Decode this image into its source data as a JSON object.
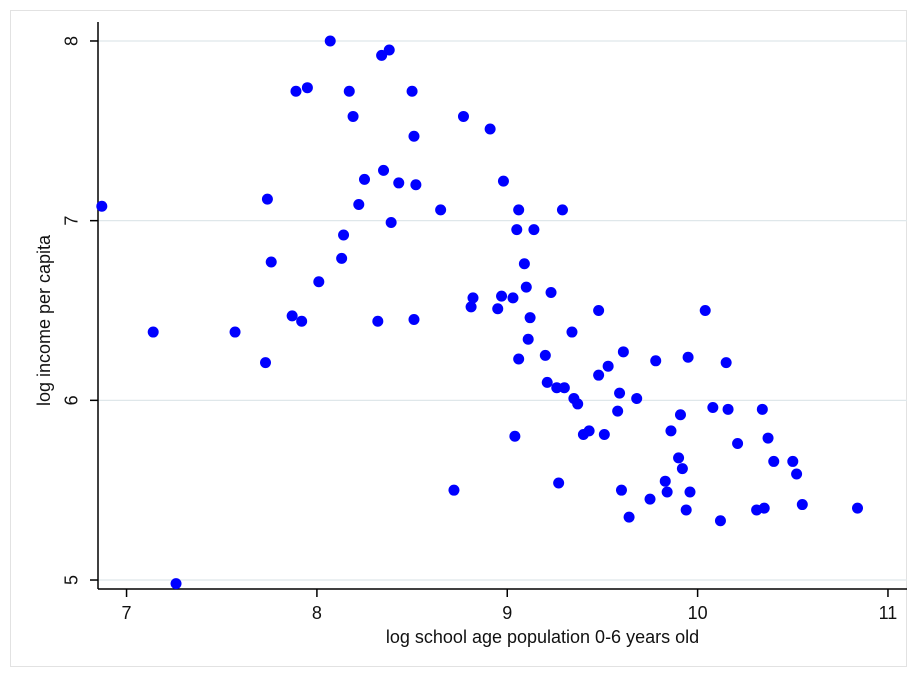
{
  "chart_data": {
    "type": "scatter",
    "title": "",
    "xlabel": "log school age population 0-6 years old",
    "ylabel": "log income per capita",
    "xlim": [
      6.85,
      11.1
    ],
    "ylim": [
      4.95,
      8.05
    ],
    "xticks": [
      7,
      8,
      9,
      10,
      11
    ],
    "yticks": [
      5,
      6,
      7,
      8
    ],
    "xtick_labels": [
      "7",
      "8",
      "9",
      "10",
      "11"
    ],
    "ytick_labels": [
      "5",
      "6",
      "7",
      "8"
    ],
    "grid": "horizontal",
    "marker_color": "#0000ff",
    "series": [
      {
        "points": [
          [
            6.87,
            7.08
          ],
          [
            7.14,
            6.38
          ],
          [
            7.26,
            4.98
          ],
          [
            7.57,
            6.38
          ],
          [
            7.73,
            6.21
          ],
          [
            7.74,
            7.12
          ],
          [
            7.76,
            6.77
          ],
          [
            7.87,
            6.47
          ],
          [
            7.89,
            7.72
          ],
          [
            7.92,
            6.44
          ],
          [
            7.95,
            7.74
          ],
          [
            8.01,
            6.66
          ],
          [
            8.07,
            8.0
          ],
          [
            8.13,
            6.79
          ],
          [
            8.14,
            6.92
          ],
          [
            8.17,
            7.72
          ],
          [
            8.19,
            7.58
          ],
          [
            8.22,
            7.09
          ],
          [
            8.25,
            7.23
          ],
          [
            8.32,
            6.44
          ],
          [
            8.34,
            7.92
          ],
          [
            8.35,
            7.28
          ],
          [
            8.38,
            7.95
          ],
          [
            8.39,
            6.99
          ],
          [
            8.43,
            7.21
          ],
          [
            8.5,
            7.72
          ],
          [
            8.51,
            7.47
          ],
          [
            8.51,
            6.45
          ],
          [
            8.52,
            7.2
          ],
          [
            8.65,
            7.06
          ],
          [
            8.72,
            5.5
          ],
          [
            8.77,
            7.58
          ],
          [
            8.81,
            6.52
          ],
          [
            8.82,
            6.57
          ],
          [
            8.91,
            7.51
          ],
          [
            8.95,
            6.51
          ],
          [
            8.97,
            6.58
          ],
          [
            8.98,
            7.22
          ],
          [
            9.03,
            6.57
          ],
          [
            9.04,
            5.8
          ],
          [
            9.05,
            6.95
          ],
          [
            9.06,
            7.06
          ],
          [
            9.06,
            6.23
          ],
          [
            9.09,
            6.76
          ],
          [
            9.1,
            6.63
          ],
          [
            9.11,
            6.34
          ],
          [
            9.12,
            6.46
          ],
          [
            9.14,
            6.95
          ],
          [
            9.2,
            6.25
          ],
          [
            9.21,
            6.1
          ],
          [
            9.23,
            6.6
          ],
          [
            9.26,
            6.07
          ],
          [
            9.27,
            5.54
          ],
          [
            9.29,
            7.06
          ],
          [
            9.3,
            6.07
          ],
          [
            9.34,
            6.38
          ],
          [
            9.35,
            6.01
          ],
          [
            9.37,
            5.98
          ],
          [
            9.4,
            5.81
          ],
          [
            9.43,
            5.83
          ],
          [
            9.48,
            6.5
          ],
          [
            9.48,
            6.14
          ],
          [
            9.51,
            5.81
          ],
          [
            9.53,
            6.19
          ],
          [
            9.58,
            5.94
          ],
          [
            9.59,
            6.04
          ],
          [
            9.6,
            5.5
          ],
          [
            9.61,
            6.27
          ],
          [
            9.64,
            5.35
          ],
          [
            9.68,
            6.01
          ],
          [
            9.75,
            5.45
          ],
          [
            9.78,
            6.22
          ],
          [
            9.83,
            5.55
          ],
          [
            9.84,
            5.49
          ],
          [
            9.86,
            5.83
          ],
          [
            9.9,
            5.68
          ],
          [
            9.91,
            5.92
          ],
          [
            9.92,
            5.62
          ],
          [
            9.94,
            5.39
          ],
          [
            9.95,
            6.24
          ],
          [
            9.96,
            5.49
          ],
          [
            10.04,
            6.5
          ],
          [
            10.08,
            5.96
          ],
          [
            10.12,
            5.33
          ],
          [
            10.15,
            6.21
          ],
          [
            10.16,
            5.95
          ],
          [
            10.21,
            5.76
          ],
          [
            10.31,
            5.39
          ],
          [
            10.34,
            5.95
          ],
          [
            10.35,
            5.4
          ],
          [
            10.37,
            5.79
          ],
          [
            10.4,
            5.66
          ],
          [
            10.5,
            5.66
          ],
          [
            10.52,
            5.59
          ],
          [
            10.55,
            5.42
          ],
          [
            10.84,
            5.4
          ]
        ]
      }
    ]
  }
}
